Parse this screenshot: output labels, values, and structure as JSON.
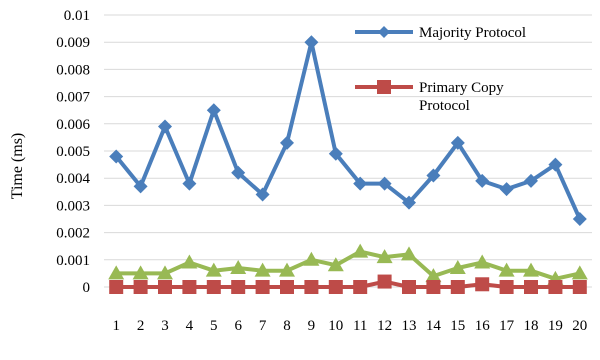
{
  "chart_data": {
    "type": "line",
    "title": "",
    "xlabel": "",
    "ylabel": "Time (ms)",
    "ylim": [
      0,
      0.01
    ],
    "yticks": [
      "0",
      "0.001",
      "0.002",
      "0.003",
      "0.004",
      "0.005",
      "0.006",
      "0.007",
      "0.008",
      "0.009",
      "0.01"
    ],
    "grid": true,
    "legend_position": "top-right",
    "categories": [
      "1",
      "2",
      "3",
      "4",
      "5",
      "6",
      "7",
      "8",
      "9",
      "10",
      "11",
      "12",
      "13",
      "14",
      "15",
      "16",
      "17",
      "18",
      "19",
      "20"
    ],
    "series": [
      {
        "name": "Majority Protocol",
        "color": "#4a7ebb",
        "marker": "diamond",
        "values": [
          0.0048,
          0.0037,
          0.0059,
          0.0038,
          0.0065,
          0.0042,
          0.0034,
          0.0053,
          0.009,
          0.0049,
          0.0038,
          0.0038,
          0.0031,
          0.0041,
          0.0053,
          0.0039,
          0.0036,
          0.0039,
          0.0045,
          0.0025
        ]
      },
      {
        "name": "Primary Copy Protocol",
        "color": "#be4b48",
        "marker": "square",
        "values": [
          0.0,
          0.0,
          0.0,
          0.0,
          0.0,
          0.0,
          0.0,
          0.0,
          0.0,
          0.0,
          0.0,
          0.0002,
          0.0,
          0.0,
          0.0,
          0.0001,
          0.0,
          0.0,
          0.0,
          0.0
        ]
      },
      {
        "color": "#98b954",
        "marker": "triangle",
        "values": [
          0.0005,
          0.0005,
          0.0005,
          0.0009,
          0.0006,
          0.0007,
          0.0006,
          0.0006,
          0.001,
          0.0008,
          0.0013,
          0.0011,
          0.0012,
          0.0004,
          0.0007,
          0.0009,
          0.0006,
          0.0006,
          0.0003,
          0.0005
        ]
      }
    ],
    "legend": {
      "entry1": "Majority Protocol",
      "entry2_line1": "Primary Copy",
      "entry2_line2": "Protocol"
    }
  }
}
